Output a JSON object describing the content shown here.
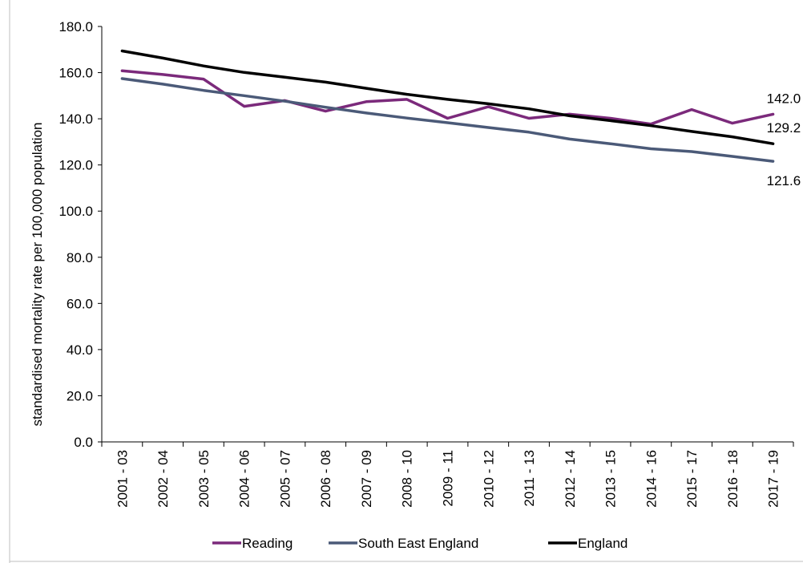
{
  "chart_data": {
    "type": "line",
    "title": "",
    "xlabel": "",
    "ylabel": "standardised mortality rate per 100,000 population",
    "ylim": [
      0,
      180
    ],
    "y_ticks": [
      "0.0",
      "20.0",
      "40.0",
      "60.0",
      "80.0",
      "100.0",
      "120.0",
      "140.0",
      "160.0",
      "180.0"
    ],
    "grid": false,
    "legend_position": "bottom",
    "categories": [
      "2001 - 03",
      "2002 - 04",
      "2003 - 05",
      "2004 - 06",
      "2005 - 07",
      "2006 - 08",
      "2007 - 09",
      "2008 - 10",
      "2009 - 11",
      "2010 - 12",
      "2011 - 13",
      "2012 - 14",
      "2013 - 15",
      "2014 - 16",
      "2015 - 17",
      "2016 - 18",
      "2017 - 19"
    ],
    "series": [
      {
        "name": "Reading",
        "color": "#7b2a7b",
        "values": [
          160.8,
          159.2,
          157.2,
          145.4,
          147.9,
          143.3,
          147.4,
          148.4,
          140.2,
          145.2,
          140.2,
          142.0,
          140.2,
          137.7,
          144.0,
          138.1,
          142.0
        ],
        "end_label": "142.0"
      },
      {
        "name": "South East England",
        "color": "#4b5a78",
        "values": [
          157.4,
          155.0,
          152.3,
          150.0,
          147.6,
          145.0,
          142.5,
          140.3,
          138.3,
          136.2,
          134.2,
          131.2,
          129.2,
          127.0,
          125.8,
          123.7,
          121.6
        ],
        "end_label": "121.6"
      },
      {
        "name": "England",
        "color": "#000000",
        "values": [
          169.4,
          166.3,
          162.9,
          160.1,
          158.0,
          155.9,
          153.2,
          150.6,
          148.4,
          146.5,
          144.3,
          141.3,
          139.2,
          137.0,
          134.5,
          132.2,
          129.2
        ],
        "end_label": "129.2"
      }
    ]
  }
}
